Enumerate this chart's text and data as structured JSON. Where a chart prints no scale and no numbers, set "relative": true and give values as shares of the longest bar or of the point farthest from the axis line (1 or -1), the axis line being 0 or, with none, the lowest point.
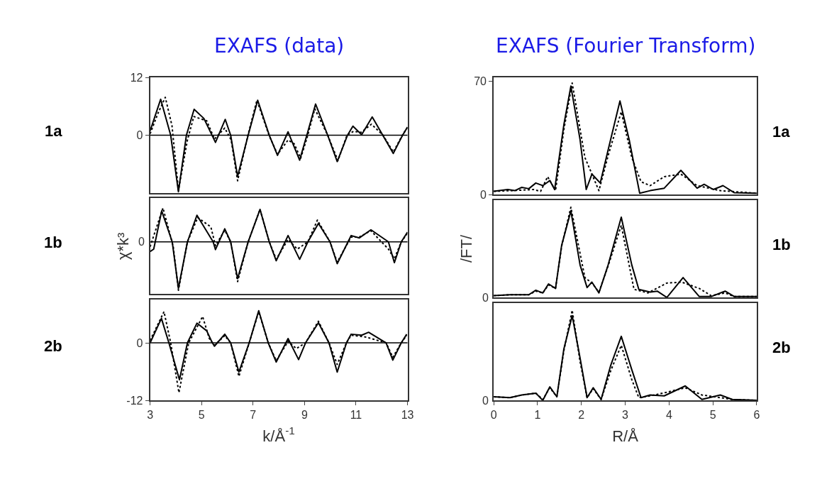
{
  "chart_data": [
    {
      "type": "line",
      "title": "EXAFS (data)",
      "xlim": [
        3,
        13
      ],
      "ylim": [
        -12,
        12
      ],
      "yticks": [
        12,
        0
      ],
      "tick_labels": "y",
      "marker": "none",
      "annotations": [
        "1a"
      ],
      "ref_lines": [
        {
          "axis": "y",
          "value": 0,
          "color": "#000000"
        }
      ],
      "series": [
        {
          "color": "#000000",
          "line_style": "solid",
          "x": [
            3.0,
            3.41,
            3.8,
            4.1,
            4.41,
            4.71,
            5.09,
            5.54,
            5.92,
            6.13,
            6.4,
            6.81,
            7.18,
            7.63,
            7.95,
            8.36,
            8.81,
            9.09,
            9.43,
            9.9,
            10.27,
            10.67,
            10.88,
            11.22,
            11.63,
            12.04,
            12.45,
            12.81,
            13.0
          ],
          "values": [
            0.9,
            7.5,
            0,
            -11.8,
            0,
            5.4,
            3.5,
            -1.5,
            3.3,
            0,
            -8.6,
            0,
            7.3,
            0,
            -4.2,
            0.7,
            -5.2,
            0,
            6.5,
            0,
            -5.5,
            0,
            1.9,
            0.1,
            3.8,
            0,
            -3.8,
            0,
            1.7
          ]
        },
        {
          "color": "#000000",
          "line_style": "dotted",
          "x": [
            3.0,
            3.3,
            3.59,
            3.85,
            4.1,
            4.45,
            4.7,
            5.2,
            5.5,
            5.9,
            6.15,
            6.4,
            6.8,
            7.15,
            7.62,
            7.95,
            8.36,
            8.6,
            8.85,
            9.1,
            9.4,
            9.9,
            10.3,
            10.65,
            10.9,
            11.2,
            11.6,
            12.05,
            12.45,
            12.8,
            13.0
          ],
          "values": [
            0.3,
            4.5,
            7.9,
            2.0,
            -11.5,
            -1.0,
            3.9,
            3.0,
            -0.8,
            1.5,
            -1.0,
            -9.5,
            0,
            7.3,
            0,
            -4.0,
            -1.0,
            -1.8,
            -4.8,
            -0.5,
            5.5,
            0,
            -5.3,
            0,
            0.8,
            0.6,
            2.3,
            0,
            -3.5,
            0,
            1.6
          ]
        }
      ]
    },
    {
      "type": "line",
      "title": "EXAFS (Fourier Transform)",
      "xlim": [
        0,
        6
      ],
      "ylim": [
        0,
        72
      ],
      "yticks": [
        70,
        0
      ],
      "tick_labels": "y",
      "marker": "none",
      "annotations": [
        "1a"
      ],
      "series": [
        {
          "color": "#000000",
          "line_style": "solid",
          "x": [
            0,
            0.32,
            0.48,
            0.64,
            0.8,
            0.96,
            1.12,
            1.28,
            1.39,
            1.6,
            1.76,
            1.97,
            2.11,
            2.24,
            2.43,
            2.61,
            2.88,
            3.09,
            3.33,
            3.57,
            3.89,
            4.27,
            4.64,
            4.8,
            5.01,
            5.23,
            5.49,
            6.0
          ],
          "values": [
            2.0,
            3.1,
            2.4,
            4.4,
            3.6,
            7.1,
            5.5,
            8.6,
            3.1,
            43,
            66.8,
            33.8,
            3.1,
            12.6,
            7.1,
            27.5,
            57.7,
            33.8,
            0.8,
            2.4,
            3.9,
            14.9,
            3.9,
            6.3,
            3.1,
            5.5,
            1.1,
            0.8
          ]
        },
        {
          "color": "#000000",
          "line_style": "dotted",
          "x": [
            0,
            0.5,
            0.91,
            1.07,
            1.23,
            1.41,
            1.6,
            1.79,
            2.08,
            2.4,
            2.61,
            2.91,
            3.15,
            3.36,
            3.57,
            3.89,
            4.27,
            4.64,
            5.17,
            6.0
          ],
          "values": [
            2.0,
            2.5,
            3.1,
            2.0,
            11,
            2.4,
            40,
            68.7,
            22.8,
            2.4,
            24,
            51,
            22.8,
            7.9,
            5.5,
            11,
            12.6,
            5.5,
            2.4,
            0.8
          ]
        }
      ]
    },
    {
      "type": "line",
      "relative": true,
      "ylabel": "χ*k³",
      "xlim": [
        3,
        13
      ],
      "tick_labels": false,
      "marker": "none",
      "annotations": [
        "1b",
        "0"
      ],
      "ref_lines": [
        {
          "axis": "y",
          "value": 0,
          "color": "#000000"
        }
      ],
      "series": [
        {
          "color": "#000000",
          "line_style": "solid",
          "x": [
            3.0,
            3.14,
            3.45,
            3.86,
            4.1,
            4.45,
            4.82,
            5.45,
            5.54,
            5.9,
            6.13,
            6.4,
            6.81,
            7.27,
            7.63,
            7.9,
            8.36,
            8.81,
            9.13,
            9.54,
            9.99,
            10.27,
            10.81,
            11.13,
            11.58,
            12.26,
            12.49,
            12.76,
            13.0
          ],
          "values": [
            -0.2,
            -0.15,
            0.64,
            0,
            -0.96,
            0,
            0.55,
            0,
            -0.16,
            0.27,
            0,
            -0.76,
            0,
            0.67,
            0,
            -0.39,
            0.13,
            -0.36,
            0,
            0.38,
            0,
            -0.45,
            0.13,
            0.08,
            0.25,
            0,
            -0.43,
            0,
            0.2
          ]
        },
        {
          "color": "#000000",
          "line_style": "dotted",
          "x": [
            3.0,
            3.5,
            3.9,
            4.1,
            4.45,
            4.85,
            5.36,
            5.54,
            5.9,
            6.13,
            6.4,
            6.81,
            7.27,
            7.63,
            7.9,
            8.36,
            8.72,
            9.13,
            9.5,
            9.99,
            10.27,
            10.81,
            11.13,
            11.58,
            12.26,
            12.49,
            12.76,
            13.0
          ],
          "values": [
            -0.1,
            0.7,
            -0.1,
            -1.0,
            0,
            0.5,
            0.31,
            -0.08,
            0.24,
            0,
            -0.82,
            0,
            0.67,
            0,
            -0.36,
            0.05,
            -0.15,
            0,
            0.45,
            0,
            -0.42,
            0.1,
            0.1,
            0.23,
            -0.15,
            -0.35,
            0,
            0.18
          ]
        }
      ]
    },
    {
      "type": "line",
      "relative": true,
      "ylabel": "/FT/",
      "xlim": [
        0,
        6
      ],
      "tick_labels": false,
      "marker": "none",
      "annotations": [
        "1b",
        "0"
      ],
      "series": [
        {
          "color": "#000000",
          "line_style": "solid",
          "x": [
            0,
            0.37,
            0.8,
            0.96,
            1.12,
            1.25,
            1.41,
            1.55,
            1.76,
            1.97,
            2.13,
            2.24,
            2.4,
            2.61,
            2.91,
            3.15,
            3.31,
            3.57,
            3.73,
            3.95,
            4.32,
            4.69,
            4.96,
            5.28,
            5.49,
            6.0
          ],
          "values": [
            0.02,
            0.03,
            0.03,
            0.08,
            0.05,
            0.15,
            0.1,
            0.58,
            0.96,
            0.36,
            0.11,
            0.17,
            0.05,
            0.36,
            0.89,
            0.36,
            0.09,
            0.06,
            0.07,
            0,
            0.22,
            0.01,
            0.01,
            0.07,
            0.01,
            0.01
          ]
        },
        {
          "color": "#000000",
          "line_style": "dotted",
          "x": [
            0,
            0.37,
            0.8,
            0.96,
            1.12,
            1.25,
            1.41,
            1.55,
            1.76,
            2.08,
            2.24,
            2.4,
            2.61,
            2.91,
            3.2,
            3.52,
            3.95,
            4.29,
            4.69,
            4.96,
            5.28,
            5.49,
            6.0
          ],
          "values": [
            0.02,
            0.03,
            0.03,
            0.07,
            0.05,
            0.14,
            0.1,
            0.57,
            1,
            0.22,
            0.16,
            0.06,
            0.35,
            0.8,
            0.09,
            0.05,
            0.16,
            0.17,
            0.1,
            0.02,
            0.05,
            0.01,
            0.01
          ]
        }
      ]
    },
    {
      "type": "line",
      "xlabel": "k/Å$^{-1}$",
      "xlim": [
        3,
        13
      ],
      "ylim": [
        -12,
        9
      ],
      "xticks": [
        3,
        5,
        7,
        9,
        11,
        13
      ],
      "yticks": [
        0,
        -12
      ],
      "marker": "none",
      "annotations": [
        "2b"
      ],
      "ref_lines": [
        {
          "axis": "y",
          "value": 0,
          "color": "#000000"
        }
      ],
      "series": [
        {
          "color": "#000000",
          "line_style": "solid",
          "x": [
            3.0,
            3.44,
            3.73,
            4.14,
            4.45,
            4.82,
            5.2,
            5.4,
            5.5,
            5.9,
            6.13,
            6.45,
            6.85,
            7.22,
            7.59,
            7.9,
            8.36,
            8.77,
            9.04,
            9.54,
            9.95,
            10.27,
            10.63,
            10.81,
            11.22,
            11.49,
            12.17,
            12.43,
            12.76,
            12.97
          ],
          "values": [
            0,
            5.1,
            0,
            -7.7,
            0,
            4.1,
            2.5,
            0.2,
            -0.7,
            1.8,
            0,
            -6.1,
            0,
            6.7,
            0,
            -4.0,
            0.9,
            -3.5,
            0,
            4.2,
            0,
            -6.1,
            0,
            1.8,
            1.6,
            2.2,
            0,
            -3.6,
            0,
            1.8
          ]
        },
        {
          "color": "#000000",
          "line_style": "dotted",
          "x": [
            3.0,
            3.54,
            3.8,
            4.12,
            4.5,
            5.04,
            5.3,
            5.5,
            5.9,
            6.13,
            6.45,
            6.85,
            7.22,
            7.59,
            7.9,
            8.36,
            8.68,
            9.04,
            9.54,
            9.95,
            10.27,
            10.63,
            10.81,
            11.4,
            12.17,
            12.43,
            12.76,
            12.97
          ],
          "values": [
            0.5,
            6.5,
            0,
            -10.4,
            0,
            5.5,
            0.9,
            -0.5,
            1.5,
            0,
            -7.0,
            0,
            6.5,
            0,
            -3.7,
            0.3,
            -1.2,
            0,
            4.5,
            0,
            -4.5,
            0,
            1.6,
            1.2,
            0,
            -3.0,
            0,
            1.6
          ]
        }
      ]
    },
    {
      "type": "line",
      "relative": true,
      "xlabel": "R/Å",
      "xlim": [
        0,
        6
      ],
      "xticks": [
        0,
        1,
        2,
        3,
        4,
        5,
        6
      ],
      "tick_labels": "x",
      "marker": "none",
      "annotations": [
        "2b",
        "0"
      ],
      "series": [
        {
          "color": "#000000",
          "line_style": "solid",
          "x": [
            0,
            0.37,
            0.64,
            0.96,
            1.12,
            1.28,
            1.44,
            1.6,
            1.79,
            1.97,
            2.13,
            2.27,
            2.45,
            2.67,
            2.91,
            3.15,
            3.36,
            3.57,
            3.89,
            4.37,
            4.75,
            5.17,
            5.44,
            6.0
          ],
          "values": [
            0.04,
            0.03,
            0.06,
            0.08,
            0,
            0.15,
            0.04,
            0.57,
            0.94,
            0.47,
            0.03,
            0.14,
            0.01,
            0.39,
            0.71,
            0.34,
            0.03,
            0.06,
            0.05,
            0.16,
            0.01,
            0.06,
            0.01,
            0
          ]
        },
        {
          "color": "#000000",
          "line_style": "dotted",
          "x": [
            0,
            0.37,
            0.64,
            0.96,
            1.12,
            1.28,
            1.44,
            1.6,
            1.79,
            1.97,
            2.13,
            2.27,
            2.45,
            2.67,
            2.91,
            3.15,
            3.31,
            3.57,
            3.95,
            4.37,
            4.75,
            5.17,
            5.44,
            6.0
          ],
          "values": [
            0.04,
            0.03,
            0.06,
            0.08,
            0.01,
            0.14,
            0.04,
            0.55,
            1,
            0.43,
            0.03,
            0.13,
            0.01,
            0.33,
            0.61,
            0.23,
            0.03,
            0.05,
            0.09,
            0.14,
            0.06,
            0.03,
            0.01,
            0
          ]
        }
      ]
    }
  ]
}
